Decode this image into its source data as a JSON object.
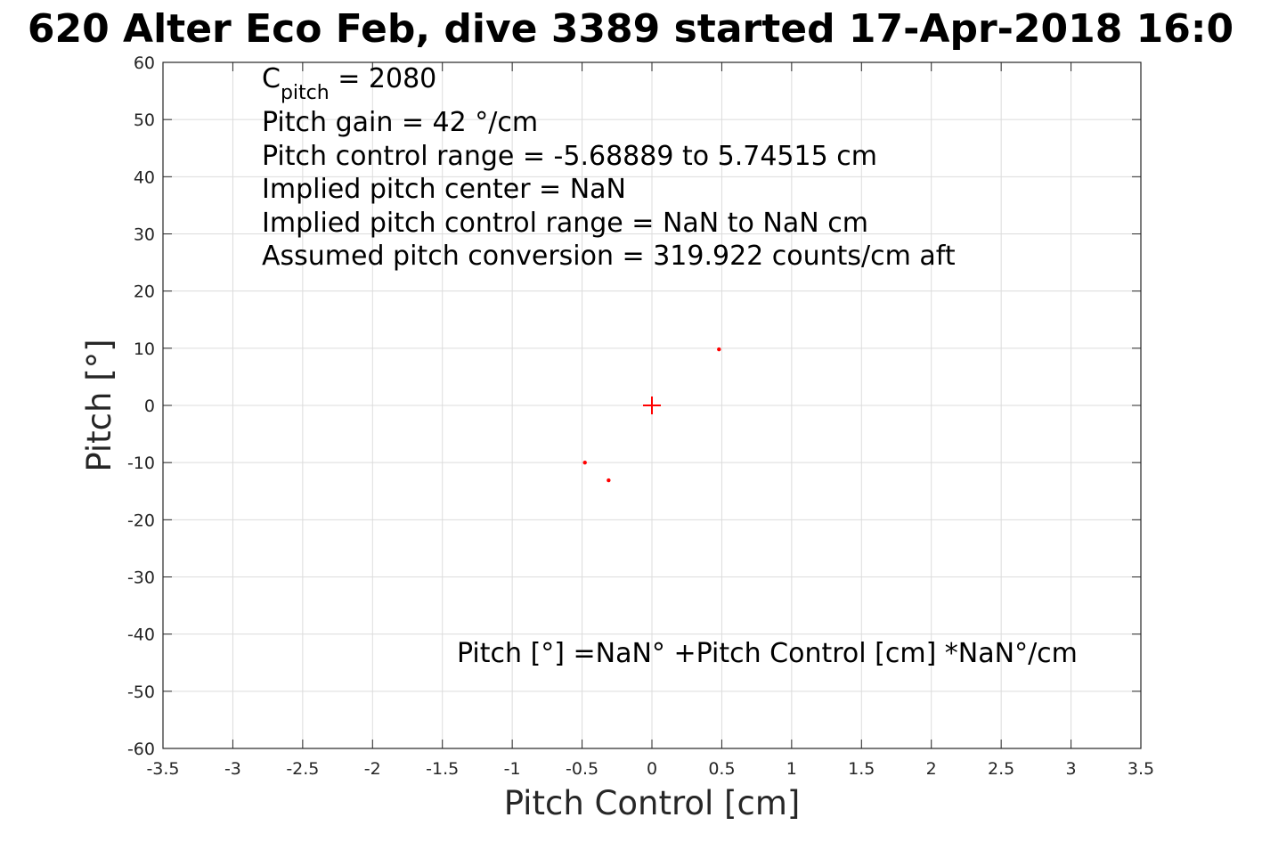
{
  "chart_data": {
    "type": "scatter",
    "title": "620 Alter Eco Feb, dive 3389 started 17-Apr-2018 16:0",
    "xlabel": "Pitch Control [cm]",
    "ylabel": "Pitch [°]",
    "xlim": [
      -3.5,
      3.5
    ],
    "ylim": [
      -60,
      60
    ],
    "x_ticks": [
      -3.5,
      -3,
      -2.5,
      -2,
      -1.5,
      -1,
      -0.5,
      0,
      0.5,
      1,
      1.5,
      2,
      2.5,
      3,
      3.5
    ],
    "x_tick_labels": [
      "-3.5",
      "-3",
      "-2.5",
      "-2",
      "-1.5",
      "-1",
      "-0.5",
      "0",
      "0.5",
      "1",
      "1.5",
      "2",
      "2.5",
      "3",
      "3.5"
    ],
    "y_ticks": [
      60,
      50,
      40,
      30,
      20,
      10,
      0,
      -10,
      -20,
      -30,
      -40,
      -50,
      -60
    ],
    "y_tick_labels": [
      "60",
      "50",
      "40",
      "30",
      "20",
      "10",
      "0",
      "-10",
      "-20",
      "-30",
      "-40",
      "-50",
      "-60"
    ],
    "grid": true,
    "series": [
      {
        "marker": "dot",
        "color": "#ff0000",
        "points": [
          {
            "x": 0.48,
            "y": 9.8
          },
          {
            "x": -0.48,
            "y": -10
          },
          {
            "x": -0.31,
            "y": -13.1
          }
        ]
      },
      {
        "marker": "plus",
        "color": "#ff0000",
        "points": [
          {
            "x": 0,
            "y": 0
          }
        ]
      }
    ],
    "annotations": {
      "cpitch_base": "C",
      "cpitch_sub": "pitch",
      "cpitch_rest": " = 2080",
      "lines": [
        "Pitch gain = 42 °/cm",
        "Pitch control range = -5.68889 to 5.74515 cm",
        "Implied pitch center = NaN",
        "Implied pitch control range = NaN to NaN cm",
        "Assumed pitch conversion = 319.922 counts/cm aft"
      ],
      "fit": "Pitch [°] =NaN° +Pitch Control [cm] *NaN°/cm"
    }
  }
}
